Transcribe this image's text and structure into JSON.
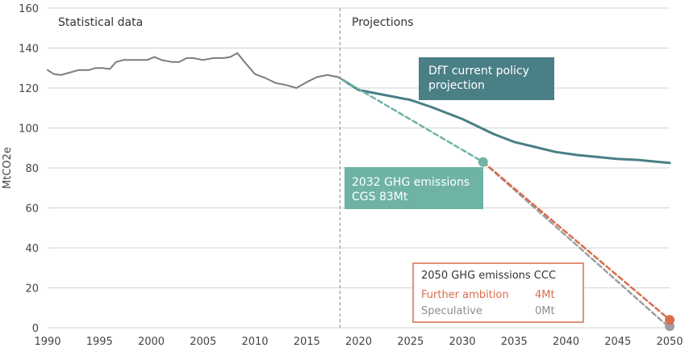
{
  "chart_data": {
    "type": "line",
    "ylabel": "MtCO2e",
    "xlim": [
      1990,
      2050
    ],
    "ylim": [
      0,
      160
    ],
    "x_ticks": [
      1990,
      1995,
      2000,
      2005,
      2010,
      2015,
      2020,
      2025,
      2030,
      2035,
      2040,
      2045,
      2050
    ],
    "y_ticks": [
      0,
      20,
      40,
      60,
      80,
      100,
      120,
      140,
      160
    ],
    "grid": "horizontal",
    "divider": {
      "x": 2018.2
    },
    "section_labels": {
      "left": "Statistical data",
      "right": "Projections"
    },
    "colors": {
      "historical": "#7b7d85",
      "dft": "#4a7f86",
      "cgs": "#6fb3a7",
      "further": "#d96e4c",
      "speculative": "#9d9ea3",
      "grid": "#d3d3d3",
      "axis_text": "#444444"
    },
    "series": [
      {
        "key": "historical",
        "style": "solid",
        "x": [
          1990,
          1990.6,
          1991.3,
          1992,
          1993,
          1994,
          1994.6,
          1995.3,
          1996,
          1996.6,
          1997.3,
          1998,
          1999,
          1999.6,
          2000.3,
          2001,
          2002,
          2002.7,
          2003.4,
          2004,
          2005,
          2006,
          2007,
          2007.6,
          2008.3,
          2009,
          2010,
          2011,
          2012,
          2013,
          2014,
          2015,
          2016,
          2017,
          2018,
          2018.5
        ],
        "y": [
          129,
          127,
          126.5,
          127.5,
          129,
          129,
          130,
          130,
          129.5,
          133,
          134,
          134,
          134,
          134,
          135.5,
          134,
          133,
          133,
          135,
          135,
          134,
          135,
          135,
          135.5,
          137.5,
          133,
          127,
          125,
          122.5,
          121.5,
          120,
          123,
          125.5,
          126.5,
          125.5,
          124
        ]
      },
      {
        "key": "dft",
        "name": "DfT current policy projection",
        "style": "solid",
        "x": [
          2018.5,
          2020,
          2022,
          2024,
          2025,
          2027,
          2030,
          2033,
          2035,
          2037,
          2039,
          2041,
          2043,
          2045,
          2047,
          2049,
          2050
        ],
        "y": [
          124,
          119,
          117,
          115,
          114,
          110.5,
          104.5,
          97,
          93,
          90.5,
          88,
          86.5,
          85.5,
          84.5,
          84,
          83,
          82.5
        ]
      },
      {
        "key": "cgs",
        "style": "dashed",
        "x": [
          2018.5,
          2032
        ],
        "y": [
          124,
          83
        ]
      },
      {
        "key": "further",
        "name": "Further ambition",
        "style": "dashed",
        "x": [
          2032,
          2050
        ],
        "y": [
          83,
          4
        ]
      },
      {
        "key": "speculative",
        "name": "Speculative",
        "style": "dashed",
        "x": [
          2032,
          2050
        ],
        "y": [
          83,
          0
        ]
      }
    ],
    "annotations": {
      "dft_box": {
        "lines": [
          "DfT current policy",
          "projection"
        ]
      },
      "cgs_box": {
        "lines": [
          "2032 GHG emissions",
          "CGS 83Mt"
        ]
      },
      "ccc_box": {
        "title": "2050 GHG emissions CCC",
        "rows": [
          {
            "label": "Further ambition",
            "value": "4Mt",
            "color": "#d96e4c"
          },
          {
            "label": "Speculative",
            "value": "0Mt",
            "color": "#9d9ea3"
          }
        ]
      }
    }
  }
}
